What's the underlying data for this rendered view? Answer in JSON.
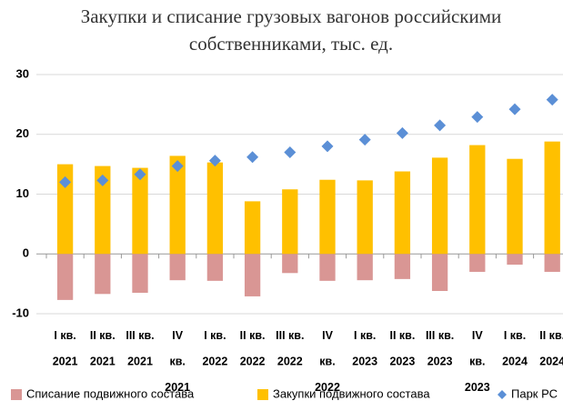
{
  "chart_data": {
    "type": "bar",
    "title": "Закупки и списание грузовых вагонов российскими собственниками, тыс. ед.",
    "categories": [
      "I кв. 2021",
      "II кв. 2021",
      "III кв. 2021",
      "IV кв. 2021",
      "I кв. 2022",
      "II кв. 2022",
      "III кв. 2022",
      "IV кв. 2022",
      "I кв. 2023",
      "II кв. 2023",
      "III кв. 2023",
      "IV кв. 2023",
      "I кв. 2024",
      "II кв. 2024"
    ],
    "series": [
      {
        "name": "Списание подвижного состава",
        "color": "#d99694",
        "values": [
          -7.7,
          -6.7,
          -6.5,
          -4.4,
          -4.5,
          -7.1,
          -3.2,
          -4.5,
          -4.4,
          -4.2,
          -6.2,
          -3.0,
          -1.8,
          -3.0
        ]
      },
      {
        "name": "Закупки подвижного состава",
        "color": "#ffc000",
        "values": [
          15.0,
          14.7,
          14.4,
          16.4,
          15.3,
          8.8,
          10.8,
          12.4,
          12.3,
          13.8,
          16.1,
          18.2,
          15.9,
          18.8
        ]
      },
      {
        "name": "Парк РС",
        "color": "#5b8fd6",
        "marker": "diamond",
        "values": [
          12.0,
          12.3,
          13.3,
          14.7,
          15.6,
          16.2,
          17.0,
          18.0,
          19.1,
          20.2,
          21.5,
          22.9,
          24.2,
          25.8
        ]
      }
    ],
    "ylim": [
      -10,
      30
    ],
    "yticks": [
      -10,
      0,
      10,
      20,
      30
    ],
    "grid": true,
    "legend": "bottom"
  }
}
